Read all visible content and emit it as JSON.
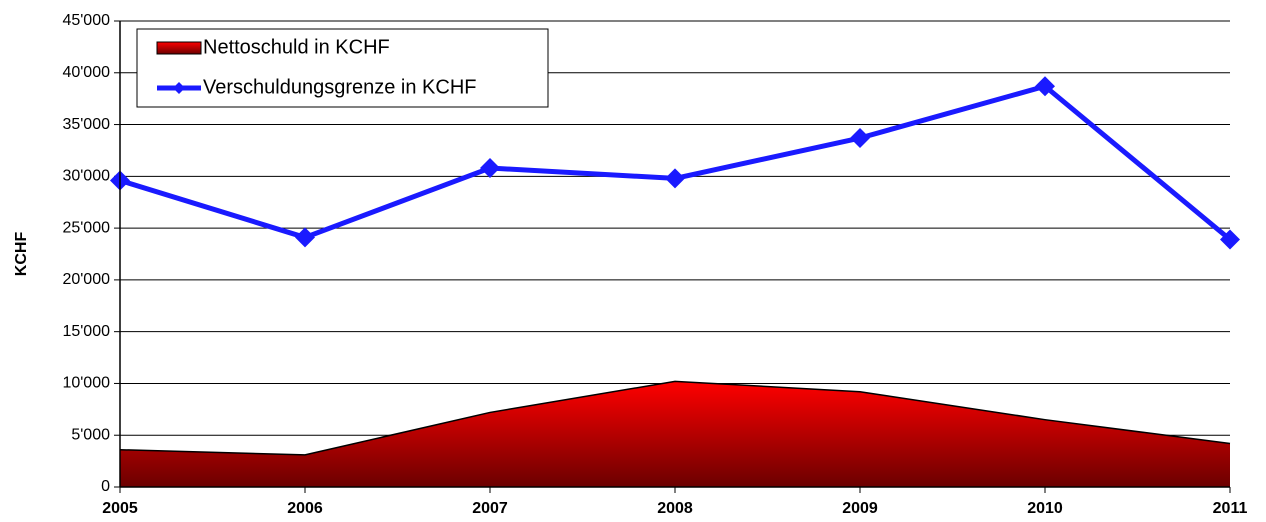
{
  "chart_data": {
    "type": "line",
    "y_label": "KCHF",
    "x": [
      2005,
      2006,
      2007,
      2008,
      2009,
      2010,
      2011
    ],
    "xlim": [
      2005,
      2011
    ],
    "xticks": [
      2005,
      2006,
      2007,
      2008,
      2009,
      2010,
      2011
    ],
    "ylim": [
      0,
      45000
    ],
    "yticks": [
      0,
      {
        "value": 5000,
        "label": "5'000"
      },
      {
        "value": 10000,
        "label": "10'000"
      },
      {
        "value": 15000,
        "label": "15'000"
      },
      {
        "value": 20000,
        "label": "20'000"
      },
      {
        "value": 25000,
        "label": "25'000"
      },
      {
        "value": 30000,
        "label": "30'000"
      },
      {
        "value": 35000,
        "label": "35'000"
      },
      {
        "value": 40000,
        "label": "40'000"
      },
      {
        "value": 45000,
        "label": "45'000"
      }
    ],
    "grid": true,
    "legend": "upper-left",
    "series": [
      {
        "name": "Nettoschuld in KCHF",
        "type": "area",
        "color": "#ff0000",
        "values": [
          3600,
          3100,
          7200,
          10200,
          9200,
          6500,
          4200
        ]
      },
      {
        "name": "Verschuldungsgrenze in KCHF",
        "type": "line",
        "color": "#1a1aff",
        "values": [
          29600,
          24100,
          30800,
          29800,
          33700,
          38700,
          23900
        ]
      }
    ]
  }
}
